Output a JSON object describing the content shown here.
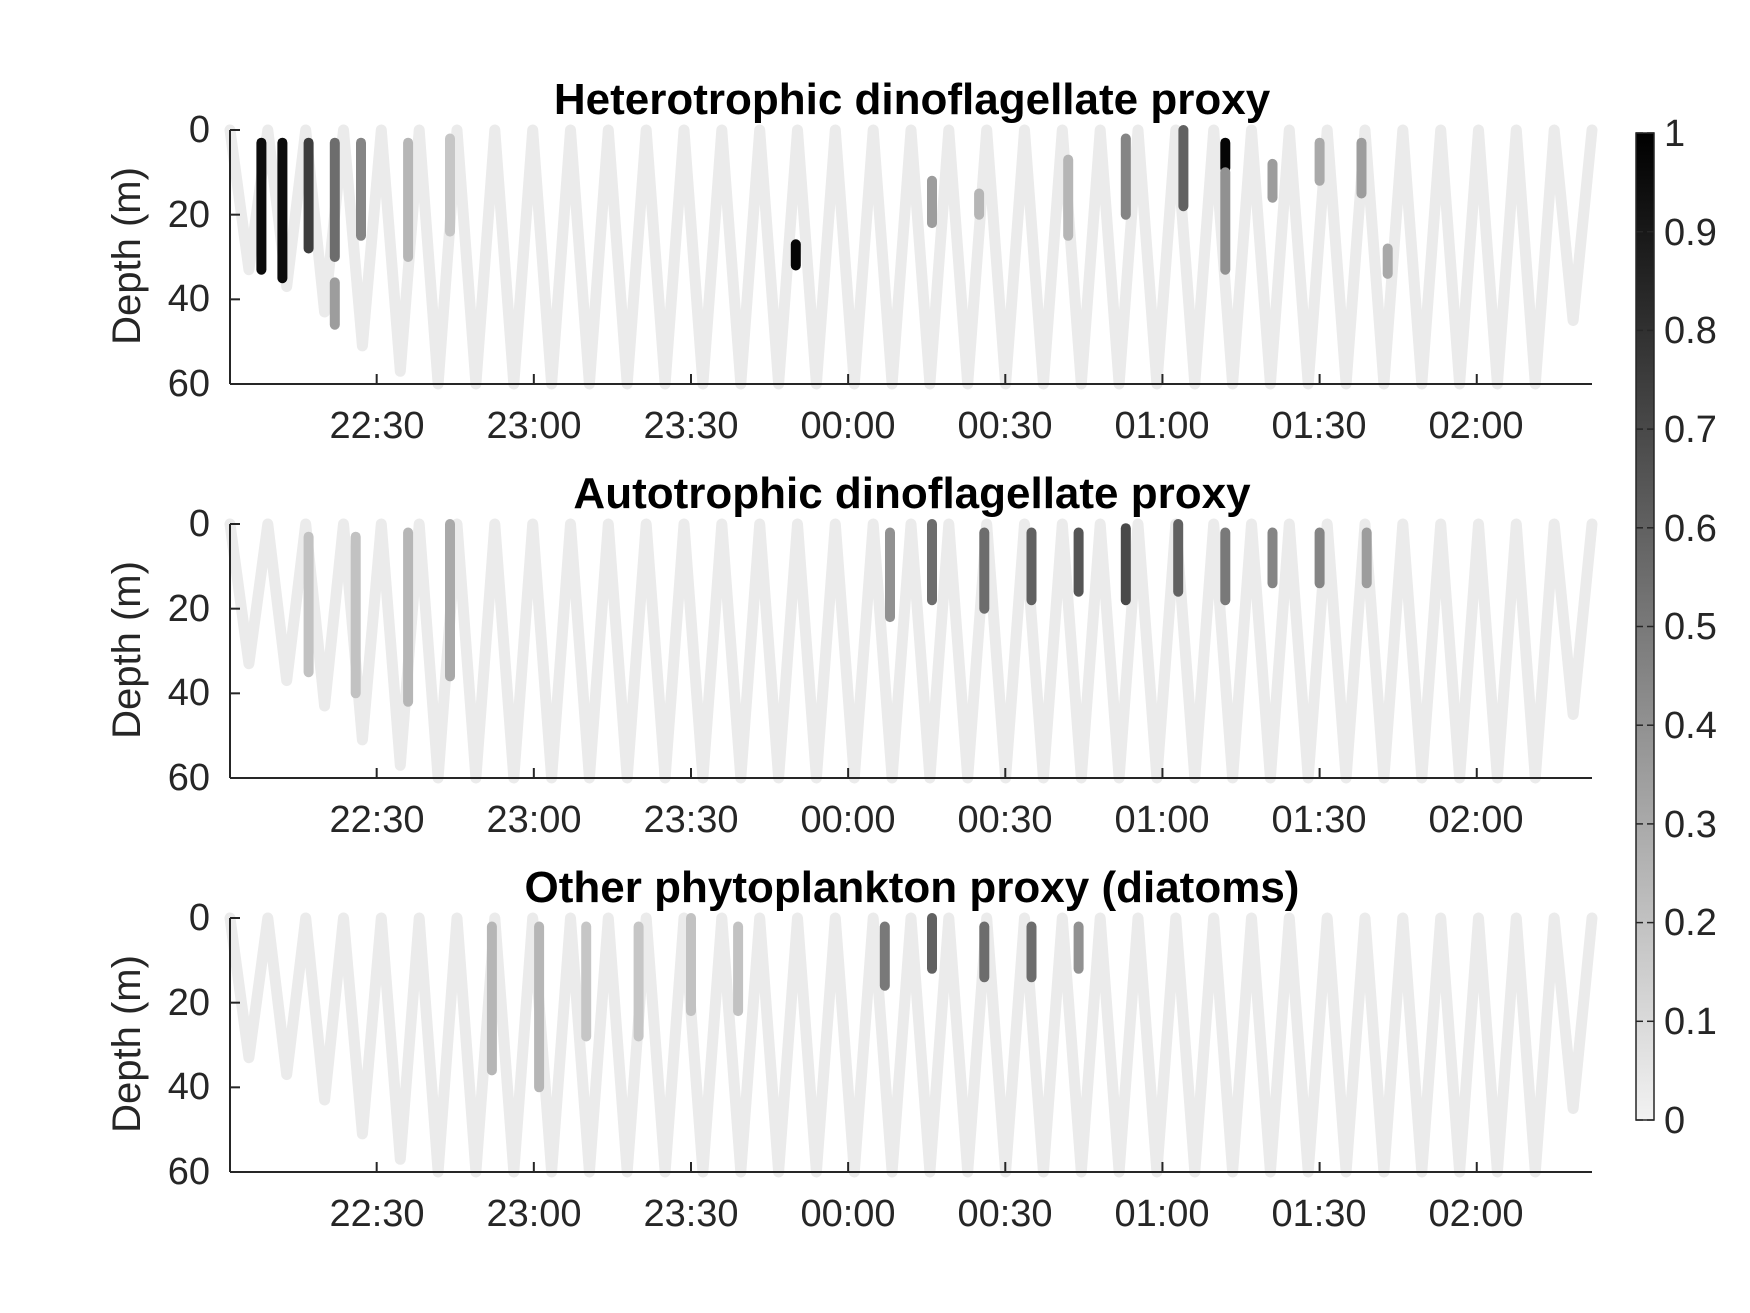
{
  "chart_data": [
    {
      "type": "scatter",
      "title": "Heterotrophic dinoflagellate proxy",
      "xlabel": "",
      "ylabel": "Depth (m)",
      "x_range": [
        "22:02",
        "02:22"
      ],
      "xticks": [
        "22:30",
        "23:00",
        "23:30",
        "00:00",
        "00:30",
        "01:00",
        "01:30",
        "02:00"
      ],
      "ylim": [
        0,
        60
      ],
      "y_reversed": true,
      "yticks": [
        "0",
        "20",
        "40",
        "60"
      ],
      "profile_max_depth_m": [
        33,
        37,
        43,
        51,
        57,
        60,
        60,
        60,
        60,
        60,
        60,
        60,
        60,
        60,
        60,
        60,
        60,
        60,
        60,
        60,
        60,
        60,
        60,
        60,
        60,
        60,
        60,
        60,
        60,
        60,
        60,
        60,
        60,
        60,
        60,
        45
      ],
      "highlights": [
        {
          "time": "22:08",
          "depth_m": [
            3,
            33
          ],
          "value": 0.95
        },
        {
          "time": "22:12",
          "depth_m": [
            3,
            35
          ],
          "value": 0.95
        },
        {
          "time": "22:17",
          "depth_m": [
            3,
            28
          ],
          "value": 0.75
        },
        {
          "time": "22:22",
          "depth_m": [
            3,
            30
          ],
          "value": 0.55
        },
        {
          "time": "22:22",
          "depth_m": [
            36,
            46
          ],
          "value": 0.35
        },
        {
          "time": "22:27",
          "depth_m": [
            3,
            25
          ],
          "value": 0.45
        },
        {
          "time": "22:36",
          "depth_m": [
            3,
            30
          ],
          "value": 0.25
        },
        {
          "time": "22:44",
          "depth_m": [
            2,
            24
          ],
          "value": 0.18
        },
        {
          "time": "23:50",
          "depth_m": [
            27,
            32
          ],
          "value": 0.98
        },
        {
          "time": "00:16",
          "depth_m": [
            12,
            22
          ],
          "value": 0.35
        },
        {
          "time": "00:25",
          "depth_m": [
            15,
            20
          ],
          "value": 0.25
        },
        {
          "time": "00:42",
          "depth_m": [
            7,
            25
          ],
          "value": 0.25
        },
        {
          "time": "00:53",
          "depth_m": [
            2,
            20
          ],
          "value": 0.45
        },
        {
          "time": "01:04",
          "depth_m": [
            0,
            18
          ],
          "value": 0.6
        },
        {
          "time": "01:12",
          "depth_m": [
            3,
            9
          ],
          "value": 0.98
        },
        {
          "time": "01:12",
          "depth_m": [
            10,
            33
          ],
          "value": 0.4
        },
        {
          "time": "01:21",
          "depth_m": [
            8,
            16
          ],
          "value": 0.35
        },
        {
          "time": "01:30",
          "depth_m": [
            3,
            12
          ],
          "value": 0.3
        },
        {
          "time": "01:38",
          "depth_m": [
            3,
            15
          ],
          "value": 0.35
        },
        {
          "time": "01:43",
          "depth_m": [
            28,
            34
          ],
          "value": 0.3
        }
      ]
    },
    {
      "type": "scatter",
      "title": "Autotrophic dinoflagellate proxy",
      "xlabel": "",
      "ylabel": "Depth (m)",
      "x_range": [
        "22:02",
        "02:22"
      ],
      "xticks": [
        "22:30",
        "23:00",
        "23:30",
        "00:00",
        "00:30",
        "01:00",
        "01:30",
        "02:00"
      ],
      "ylim": [
        0,
        60
      ],
      "y_reversed": true,
      "yticks": [
        "0",
        "20",
        "40",
        "60"
      ],
      "profile_max_depth_m": [
        33,
        37,
        43,
        51,
        57,
        60,
        60,
        60,
        60,
        60,
        60,
        60,
        60,
        60,
        60,
        60,
        60,
        60,
        60,
        60,
        60,
        60,
        60,
        60,
        60,
        60,
        60,
        60,
        60,
        60,
        60,
        60,
        60,
        60,
        60,
        45
      ],
      "highlights": [
        {
          "time": "22:17",
          "depth_m": [
            3,
            35
          ],
          "value": 0.2
        },
        {
          "time": "22:26",
          "depth_m": [
            3,
            40
          ],
          "value": 0.2
        },
        {
          "time": "22:36",
          "depth_m": [
            2,
            42
          ],
          "value": 0.25
        },
        {
          "time": "22:44",
          "depth_m": [
            0,
            36
          ],
          "value": 0.3
        },
        {
          "time": "00:08",
          "depth_m": [
            2,
            22
          ],
          "value": 0.4
        },
        {
          "time": "00:16",
          "depth_m": [
            0,
            18
          ],
          "value": 0.55
        },
        {
          "time": "00:26",
          "depth_m": [
            2,
            20
          ],
          "value": 0.55
        },
        {
          "time": "00:35",
          "depth_m": [
            2,
            18
          ],
          "value": 0.6
        },
        {
          "time": "00:44",
          "depth_m": [
            2,
            16
          ],
          "value": 0.65
        },
        {
          "time": "00:53",
          "depth_m": [
            1,
            18
          ],
          "value": 0.7
        },
        {
          "time": "01:03",
          "depth_m": [
            0,
            16
          ],
          "value": 0.6
        },
        {
          "time": "01:12",
          "depth_m": [
            2,
            18
          ],
          "value": 0.5
        },
        {
          "time": "01:21",
          "depth_m": [
            2,
            14
          ],
          "value": 0.45
        },
        {
          "time": "01:30",
          "depth_m": [
            2,
            14
          ],
          "value": 0.45
        },
        {
          "time": "01:39",
          "depth_m": [
            2,
            14
          ],
          "value": 0.35
        }
      ]
    },
    {
      "type": "scatter",
      "title": "Other phytoplankton proxy (diatoms)",
      "xlabel": "",
      "ylabel": "Depth (m)",
      "x_range": [
        "22:02",
        "02:22"
      ],
      "xticks": [
        "22:30",
        "23:00",
        "23:30",
        "00:00",
        "00:30",
        "01:00",
        "01:30",
        "02:00"
      ],
      "ylim": [
        0,
        60
      ],
      "y_reversed": true,
      "yticks": [
        "0",
        "20",
        "40",
        "60"
      ],
      "profile_max_depth_m": [
        33,
        37,
        43,
        51,
        57,
        60,
        60,
        60,
        60,
        60,
        60,
        60,
        60,
        60,
        60,
        60,
        60,
        60,
        60,
        60,
        60,
        60,
        60,
        60,
        60,
        60,
        60,
        60,
        60,
        60,
        60,
        60,
        60,
        60,
        60,
        45
      ],
      "highlights": [
        {
          "time": "22:52",
          "depth_m": [
            2,
            36
          ],
          "value": 0.25
        },
        {
          "time": "23:01",
          "depth_m": [
            2,
            40
          ],
          "value": 0.25
        },
        {
          "time": "23:10",
          "depth_m": [
            2,
            28
          ],
          "value": 0.18
        },
        {
          "time": "23:20",
          "depth_m": [
            2,
            28
          ],
          "value": 0.18
        },
        {
          "time": "23:30",
          "depth_m": [
            0,
            22
          ],
          "value": 0.2
        },
        {
          "time": "23:39",
          "depth_m": [
            2,
            22
          ],
          "value": 0.2
        },
        {
          "time": "00:07",
          "depth_m": [
            2,
            16
          ],
          "value": 0.5
        },
        {
          "time": "00:16",
          "depth_m": [
            0,
            12
          ],
          "value": 0.6
        },
        {
          "time": "00:26",
          "depth_m": [
            2,
            14
          ],
          "value": 0.55
        },
        {
          "time": "00:35",
          "depth_m": [
            2,
            14
          ],
          "value": 0.55
        },
        {
          "time": "00:44",
          "depth_m": [
            2,
            12
          ],
          "value": 0.4
        }
      ]
    }
  ],
  "colorbar": {
    "range": [
      0,
      1
    ],
    "ticks": [
      "0",
      "0.1",
      "0.2",
      "0.3",
      "0.4",
      "0.5",
      "0.6",
      "0.7",
      "0.8",
      "0.9",
      "1"
    ],
    "colormap": [
      "#f2f2f2",
      "#000000"
    ]
  }
}
